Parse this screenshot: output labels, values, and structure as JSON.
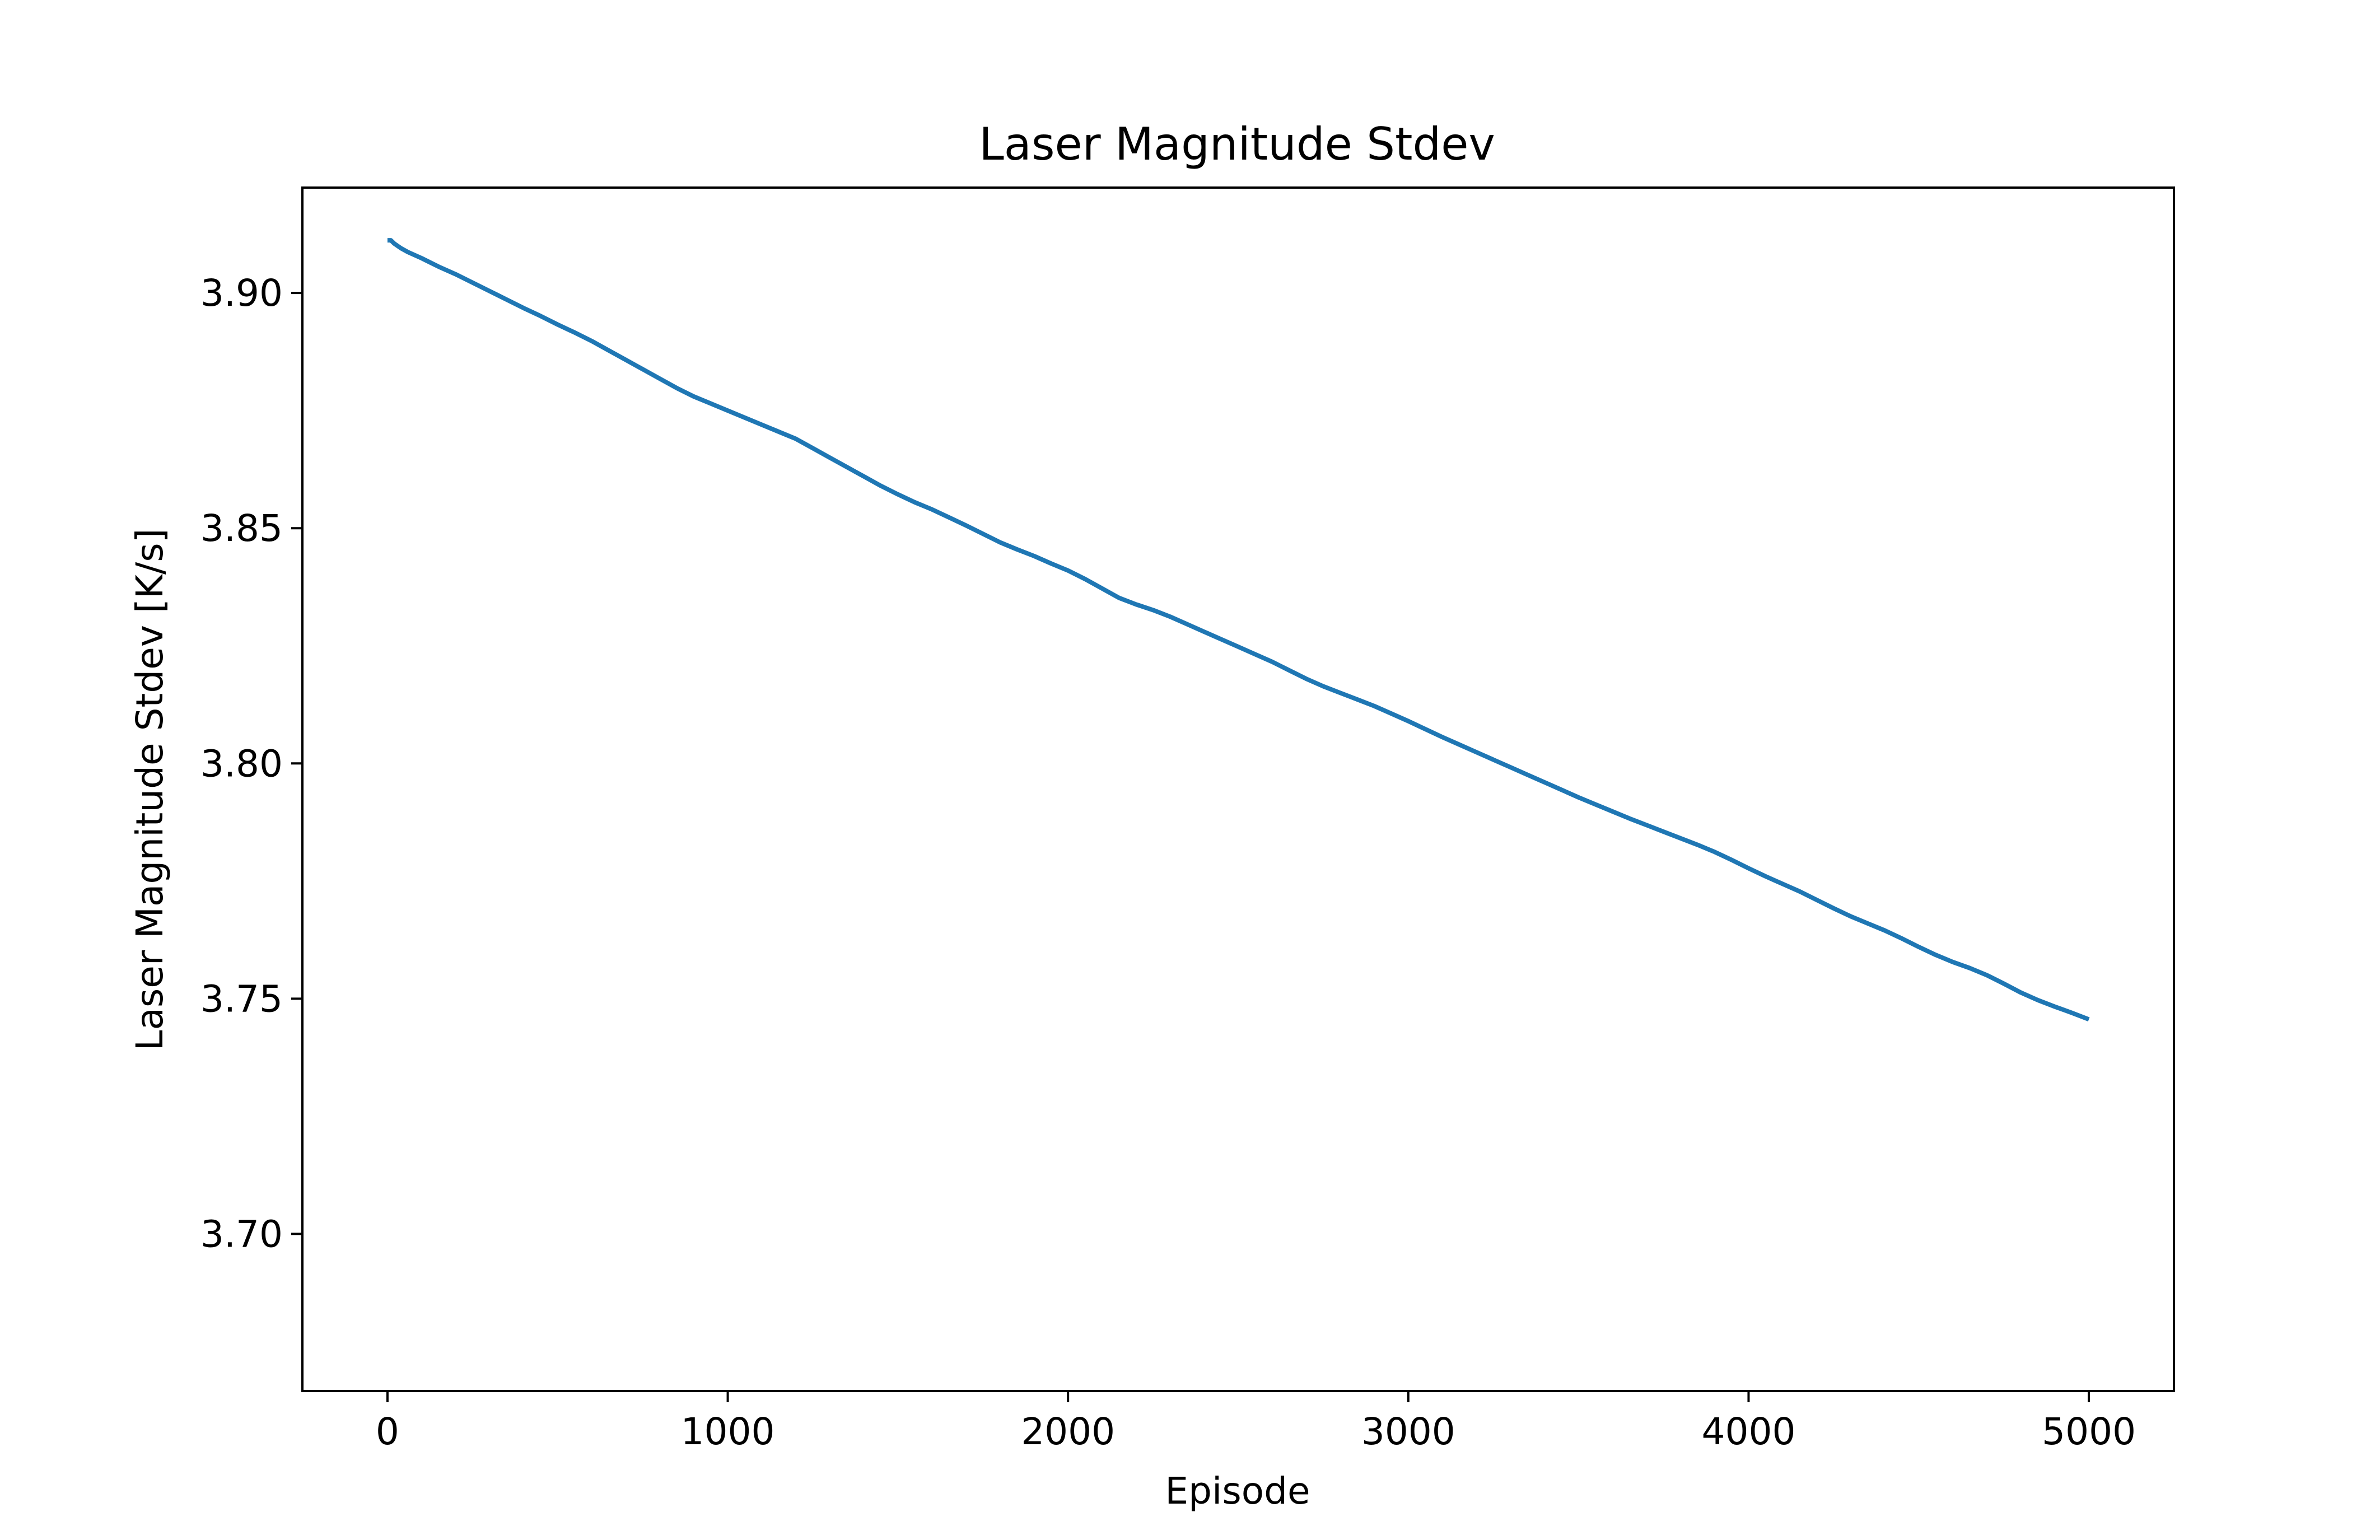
{
  "chart_data": {
    "type": "line",
    "title": "Laser Magnitude Stdev",
    "xlabel": "Episode",
    "ylabel": "Laser Magnitude Stdev [K/s]",
    "xlim": [
      -250,
      5250
    ],
    "ylim": [
      3.6666,
      3.9224
    ],
    "grid": false,
    "x_ticks": [
      0,
      1000,
      2000,
      3000,
      4000,
      5000
    ],
    "x_tick_labels": [
      "0",
      "1000",
      "2000",
      "3000",
      "4000",
      "5000"
    ],
    "y_ticks": [
      3.7,
      3.75,
      3.8,
      3.85,
      3.9
    ],
    "y_tick_labels": [
      "3.70",
      "3.75",
      "3.80",
      "3.85",
      "3.90"
    ],
    "series": [
      {
        "color": "#1f77b4",
        "x": [
          0,
          10,
          20,
          40,
          60,
          100,
          150,
          200,
          250,
          300,
          350,
          400,
          450,
          500,
          550,
          600,
          650,
          700,
          750,
          800,
          850,
          900,
          950,
          1000,
          1050,
          1100,
          1150,
          1200,
          1250,
          1300,
          1350,
          1400,
          1450,
          1500,
          1550,
          1600,
          1650,
          1700,
          1750,
          1800,
          1850,
          1900,
          1950,
          2000,
          2050,
          2100,
          2150,
          2200,
          2250,
          2300,
          2350,
          2400,
          2450,
          2500,
          2550,
          2600,
          2650,
          2700,
          2750,
          2800,
          2850,
          2900,
          2950,
          3000,
          3050,
          3100,
          3150,
          3200,
          3250,
          3300,
          3350,
          3400,
          3450,
          3500,
          3550,
          3600,
          3650,
          3700,
          3750,
          3800,
          3850,
          3900,
          3950,
          4000,
          4050,
          4100,
          4150,
          4200,
          4250,
          4300,
          4350,
          4400,
          4450,
          4500,
          4550,
          4600,
          4650,
          4700,
          4750,
          4800,
          4850,
          4900,
          4950,
          5000
        ],
        "values": [
          3.9112,
          3.9112,
          3.9105,
          3.9095,
          3.9087,
          3.9074,
          3.9056,
          3.904,
          3.9022,
          3.9004,
          3.8986,
          3.8968,
          3.8951,
          3.8933,
          3.8916,
          3.8898,
          3.8878,
          3.8858,
          3.8838,
          3.8818,
          3.8798,
          3.878,
          3.8765,
          3.875,
          3.8735,
          3.872,
          3.8705,
          3.869,
          3.867,
          3.865,
          3.863,
          3.861,
          3.859,
          3.8572,
          3.8555,
          3.854,
          3.8523,
          3.8506,
          3.8488,
          3.847,
          3.8455,
          3.8441,
          3.8425,
          3.841,
          3.8392,
          3.8372,
          3.8352,
          3.8338,
          3.8326,
          3.8312,
          3.8296,
          3.828,
          3.8264,
          3.8248,
          3.8232,
          3.8216,
          3.8198,
          3.818,
          3.8164,
          3.815,
          3.8136,
          3.8122,
          3.8106,
          3.809,
          3.8073,
          3.8056,
          3.804,
          3.8024,
          3.8008,
          3.7992,
          3.7976,
          3.796,
          3.7944,
          3.7928,
          3.7913,
          3.7898,
          3.7883,
          3.7869,
          3.7855,
          3.7841,
          3.7827,
          3.7812,
          3.7795,
          3.7777,
          3.776,
          3.7744,
          3.7728,
          3.771,
          3.7692,
          3.7675,
          3.766,
          3.7645,
          3.7628,
          3.761,
          3.7593,
          3.7578,
          3.7565,
          3.755,
          3.7532,
          3.7513,
          3.7497,
          3.7483,
          3.747,
          3.7456
        ]
      }
    ]
  }
}
